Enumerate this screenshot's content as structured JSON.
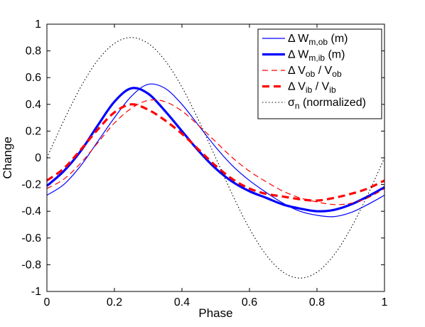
{
  "chart_data": {
    "type": "line",
    "xlabel": "Phase",
    "ylabel": "Change",
    "xlim": [
      0,
      1
    ],
    "ylim": [
      -1,
      1
    ],
    "xticks": [
      "0",
      "0.2",
      "0.4",
      "0.6",
      "0.8",
      "1"
    ],
    "yticks": [
      "1",
      "0.8",
      "0.6",
      "0.4",
      "0.2",
      "0",
      "-0.2",
      "-0.4",
      "-0.6",
      "-0.8",
      "-1"
    ],
    "grid": false,
    "legend_position": "top-right",
    "x": [
      0,
      0.05,
      0.1,
      0.15,
      0.2,
      0.25,
      0.3,
      0.35,
      0.4,
      0.45,
      0.5,
      0.55,
      0.6,
      0.65,
      0.7,
      0.75,
      0.8,
      0.85,
      0.9,
      0.95,
      1.0
    ],
    "series": [
      {
        "legend_main": "Δ W",
        "legend_sub": "m,ob",
        "legend_tail": " (m)",
        "color": "#0000ff",
        "width": 1.2,
        "dash": "",
        "values": [
          -0.28,
          -0.2,
          -0.06,
          0.12,
          0.3,
          0.46,
          0.55,
          0.52,
          0.4,
          0.24,
          0.08,
          -0.06,
          -0.17,
          -0.26,
          -0.34,
          -0.4,
          -0.43,
          -0.44,
          -0.41,
          -0.35,
          -0.28
        ]
      },
      {
        "legend_main": "Δ W",
        "legend_sub": "m,ib",
        "legend_tail": " (m)",
        "color": "#0000ff",
        "width": 3.2,
        "dash": "",
        "values": [
          -0.21,
          -0.1,
          0.05,
          0.24,
          0.42,
          0.52,
          0.48,
          0.35,
          0.2,
          0.05,
          -0.08,
          -0.18,
          -0.25,
          -0.3,
          -0.35,
          -0.38,
          -0.4,
          -0.39,
          -0.35,
          -0.29,
          -0.22
        ]
      },
      {
        "legend_main": "Δ V",
        "legend_sub": "ob",
        "legend_tail": " / V",
        "legend_sub2": "ob",
        "color": "#ff0000",
        "width": 1.2,
        "dash": "8,5",
        "values": [
          -0.23,
          -0.16,
          -0.04,
          0.11,
          0.26,
          0.37,
          0.43,
          0.42,
          0.35,
          0.24,
          0.12,
          0.0,
          -0.1,
          -0.18,
          -0.25,
          -0.3,
          -0.33,
          -0.35,
          -0.34,
          -0.3,
          -0.23
        ]
      },
      {
        "legend_main": "Δ V",
        "legend_sub": "ib",
        "legend_tail": " / V",
        "legend_sub2": "ib",
        "color": "#ff0000",
        "width": 3.2,
        "dash": "10,6",
        "values": [
          -0.17,
          -0.08,
          0.06,
          0.21,
          0.34,
          0.4,
          0.36,
          0.28,
          0.18,
          0.06,
          -0.06,
          -0.16,
          -0.23,
          -0.27,
          -0.29,
          -0.31,
          -0.32,
          -0.3,
          -0.27,
          -0.23,
          -0.17
        ]
      },
      {
        "legend_main": "σ",
        "legend_sub": "n",
        "legend_tail": " (normalized)",
        "color": "#000000",
        "width": 1.1,
        "dash": "1.5,3",
        "values": [
          0,
          0.278,
          0.529,
          0.728,
          0.856,
          0.9,
          0.856,
          0.728,
          0.529,
          0.278,
          0,
          -0.278,
          -0.529,
          -0.728,
          -0.856,
          -0.9,
          -0.856,
          -0.728,
          -0.529,
          -0.278,
          0
        ]
      }
    ]
  }
}
